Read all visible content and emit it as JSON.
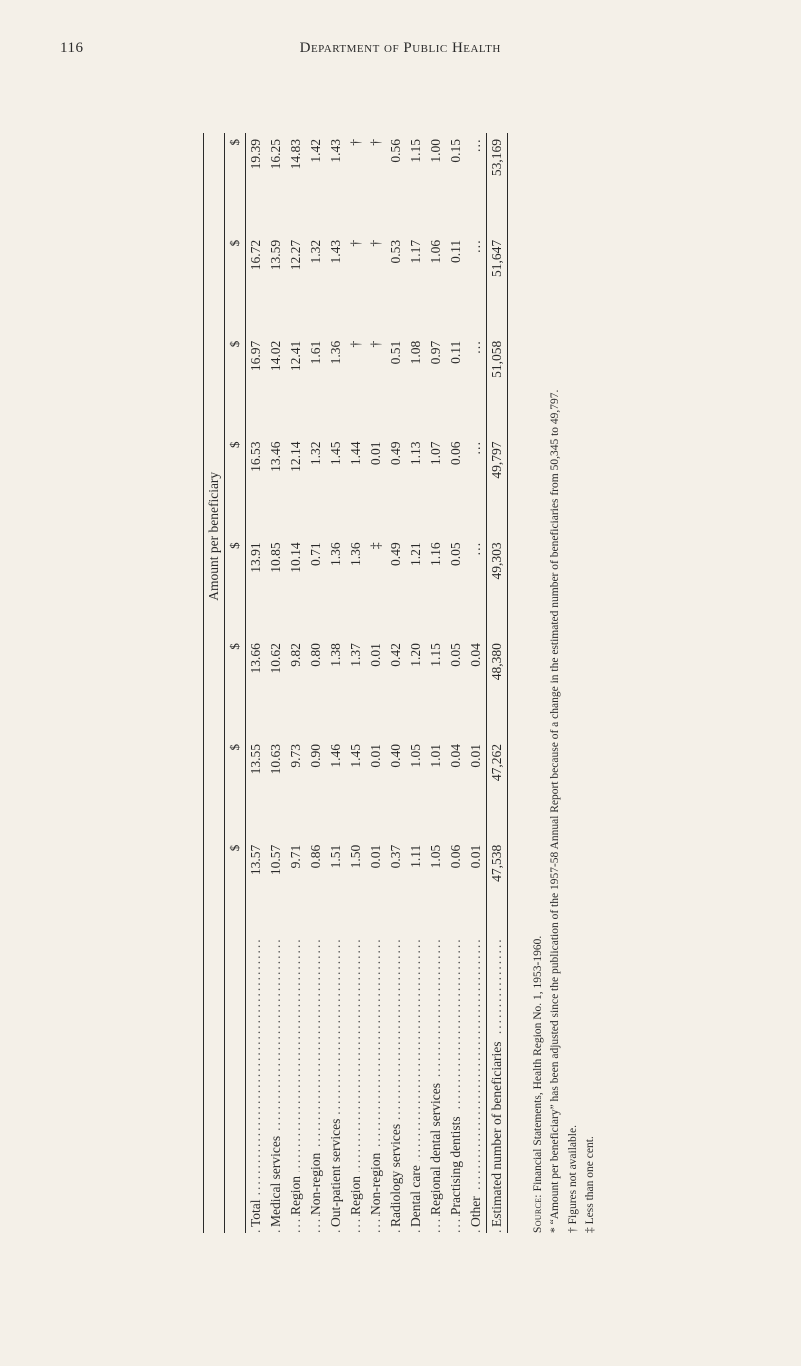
{
  "page_number": "116",
  "running_title": "Department of Public Health",
  "table": {
    "spanner": "Amount per beneficiary",
    "year_cols": [
      "$",
      "$",
      "$",
      "$",
      "$",
      "$",
      "$",
      "$"
    ],
    "rows": [
      {
        "label": "Total",
        "indent": 0,
        "vals": [
          "13.57",
          "13.55",
          "13.66",
          "13.91",
          "16.53",
          "16.97",
          "16.72",
          "19.39"
        ]
      },
      {
        "label": "Medical services",
        "indent": 0,
        "vals": [
          "10.57",
          "10.63",
          "10.62",
          "10.85",
          "13.46",
          "14.02",
          "13.59",
          "16.25"
        ]
      },
      {
        "label": "Region",
        "indent": 1,
        "vals": [
          "9.71",
          "9.73",
          "9.82",
          "10.14",
          "12.14",
          "12.41",
          "12.27",
          "14.83"
        ]
      },
      {
        "label": "Non-region",
        "indent": 1,
        "vals": [
          "0.86",
          "0.90",
          "0.80",
          "0.71",
          "1.32",
          "1.61",
          "1.32",
          "1.42"
        ]
      },
      {
        "label": "Out-patient services",
        "indent": 0,
        "vals": [
          "1.51",
          "1.46",
          "1.38",
          "1.36",
          "1.45",
          "1.36",
          "1.43",
          "1.43"
        ]
      },
      {
        "label": "Region",
        "indent": 1,
        "vals": [
          "1.50",
          "1.45",
          "1.37",
          "1.36",
          "1.44",
          "†",
          "†",
          "†"
        ]
      },
      {
        "label": "Non-region",
        "indent": 1,
        "vals": [
          "0.01",
          "0.01",
          "0.01",
          "‡",
          "0.01",
          "†",
          "†",
          "†"
        ]
      },
      {
        "label": "Radiology services",
        "indent": 0,
        "vals": [
          "0.37",
          "0.40",
          "0.42",
          "0.49",
          "0.49",
          "0.51",
          "0.53",
          "0.56"
        ]
      },
      {
        "label": "Dental care",
        "indent": 0,
        "vals": [
          "1.11",
          "1.05",
          "1.20",
          "1.21",
          "1.13",
          "1.08",
          "1.17",
          "1.15"
        ]
      },
      {
        "label": "Regional dental services",
        "indent": 1,
        "vals": [
          "1.05",
          "1.01",
          "1.15",
          "1.16",
          "1.07",
          "0.97",
          "1.06",
          "1.00"
        ]
      },
      {
        "label": "Practising dentists",
        "indent": 1,
        "vals": [
          "0.06",
          "0.04",
          "0.05",
          "0.05",
          "0.06",
          "0.11",
          "0.11",
          "0.15"
        ]
      },
      {
        "label": "Other",
        "indent": 0,
        "vals": [
          "0.01",
          "0.01",
          "0.04",
          "…",
          "…",
          "…",
          "…",
          "…"
        ]
      }
    ],
    "totals_label": "Estimated number of beneficiaries",
    "totals_vals": [
      "47,538",
      "47,262",
      "48,380",
      "49,303",
      "49,797",
      "51,058",
      "51,647",
      "53,169"
    ]
  },
  "footnotes": {
    "source_label": "Source:",
    "source_text": "Financial Statements, Health Region No. 1, 1953-1960.",
    "star": "* “Amount per beneficiary” has been adjusted since the publication of the 1957-58 Annual Report because of a change in the estimated number of beneficiaries from 50,345 to 49,797.",
    "dagger": "† Figures not available.",
    "ddagger": "‡ Less than one cent."
  },
  "style": {
    "bg": "#f4f0e8",
    "text": "#2a2a2a",
    "rule": "#2a2a2a",
    "body_fontsize": 13.5,
    "foot_fontsize": 11.5
  }
}
